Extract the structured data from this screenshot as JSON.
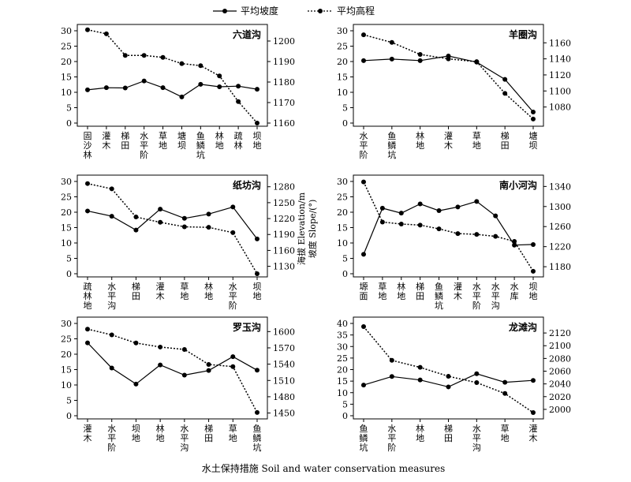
{
  "legend": {
    "slope_label": "平均坡度",
    "elev_label": "平均高程"
  },
  "y_left_label": "坡度 Slope/(°)",
  "y_right_label": "海拔 Elevation/m",
  "x_axis_title": "水土保持措施 Soil and water conservation measures",
  "chart_data": [
    {
      "type": "line",
      "title": "六道沟",
      "categories": [
        "固沙林",
        "灌木",
        "梯田",
        "水平阶",
        "草地",
        "塘坝",
        "鱼鳞坑",
        "林地",
        "疏林",
        "坝地"
      ],
      "series": [
        {
          "name": "平均坡度",
          "axis": "left",
          "values": [
            10.8,
            11.5,
            11.4,
            13.7,
            11.5,
            8.5,
            12.6,
            11.8,
            12.0,
            11.0
          ]
        },
        {
          "name": "平均高程",
          "axis": "right",
          "values": [
            1205.5,
            1203.5,
            1193,
            1193,
            1192,
            1189,
            1188,
            1183,
            1170.5,
            1160
          ]
        }
      ],
      "ylim_left": [
        0,
        30
      ],
      "yticks_left": [
        0,
        5,
        10,
        15,
        20,
        25,
        30
      ],
      "ylim_right": [
        1160,
        1205
      ],
      "yticks_right": [
        1160,
        1170,
        1180,
        1190,
        1200
      ]
    },
    {
      "type": "line",
      "title": "羊圈沟",
      "categories": [
        "水平阶",
        "鱼鳞坑",
        "林地",
        "灌木",
        "草地",
        "梯田",
        "塘坝"
      ],
      "series": [
        {
          "name": "平均坡度",
          "axis": "left",
          "values": [
            20.3,
            20.8,
            20.3,
            21.8,
            19.8,
            14.2,
            3.6
          ]
        },
        {
          "name": "平均高程",
          "axis": "right",
          "values": [
            1170,
            1160.5,
            1145.5,
            1140,
            1136.5,
            1097,
            1065
          ]
        }
      ],
      "ylim_left": [
        0,
        30
      ],
      "yticks_left": [
        0,
        5,
        10,
        15,
        20,
        25,
        30
      ],
      "ylim_right": [
        1060,
        1175
      ],
      "yticks_right": [
        1080,
        1100,
        1120,
        1140,
        1160
      ]
    },
    {
      "type": "line",
      "title": "纸坊沟",
      "categories": [
        "疏林地",
        "水平沟",
        "梯田",
        "灌木",
        "草地",
        "林地",
        "水平阶",
        "坝地"
      ],
      "series": [
        {
          "name": "平均坡度",
          "axis": "left",
          "values": [
            20.4,
            18.7,
            14.2,
            21.0,
            18.0,
            19.4,
            21.7,
            11.3
          ]
        },
        {
          "name": "平均高程",
          "axis": "right",
          "values": [
            1286,
            1276,
            1223,
            1213,
            1204.5,
            1203.5,
            1193.5,
            1116
          ]
        }
      ],
      "ylim_left": [
        0,
        30
      ],
      "yticks_left": [
        0,
        5,
        10,
        15,
        20,
        25,
        30
      ],
      "ylim_right": [
        1116,
        1290
      ],
      "yticks_right": [
        1130,
        1160,
        1190,
        1220,
        1250,
        1280
      ]
    },
    {
      "type": "line",
      "title": "南小河沟",
      "categories": [
        "塬面",
        "草地",
        "林地",
        "梯田",
        "鱼鳞坑",
        "灌木",
        "水平阶",
        "水平沟",
        "水库",
        "坝地"
      ],
      "series": [
        {
          "name": "平均坡度",
          "axis": "left",
          "values": [
            6.3,
            21.3,
            19.7,
            22.7,
            20.5,
            21.7,
            23.5,
            18.8,
            9.3,
            9.5
          ]
        },
        {
          "name": "平均高程",
          "axis": "right",
          "values": [
            1349,
            1269,
            1265,
            1263,
            1255.5,
            1246,
            1244.5,
            1240.5,
            1230.5,
            1171
          ]
        }
      ],
      "ylim_left": [
        0,
        30
      ],
      "yticks_left": [
        0,
        5,
        10,
        15,
        20,
        25,
        30
      ],
      "ylim_right": [
        1166,
        1350
      ],
      "yticks_right": [
        1180,
        1220,
        1260,
        1300,
        1340
      ]
    },
    {
      "type": "line",
      "title": "罗玉沟",
      "categories": [
        "灌木",
        "水平阶",
        "坝地",
        "林地",
        "水平沟",
        "梯田",
        "草地",
        "鱼鳞坑"
      ],
      "series": [
        {
          "name": "平均坡度",
          "axis": "left",
          "values": [
            23.7,
            15.5,
            10.3,
            16.5,
            13.2,
            14.7,
            19.2,
            14.8
          ]
        },
        {
          "name": "平均高程",
          "axis": "right",
          "values": [
            1604.5,
            1594,
            1579,
            1571.5,
            1567,
            1539.5,
            1535.5,
            1451
          ]
        }
      ],
      "ylim_left": [
        0,
        30
      ],
      "yticks_left": [
        0,
        5,
        10,
        15,
        20,
        25,
        30
      ],
      "ylim_right": [
        1445,
        1615
      ],
      "yticks_right": [
        1450,
        1480,
        1510,
        1540,
        1570,
        1600
      ]
    },
    {
      "type": "line",
      "title": "龙滩沟",
      "categories": [
        "鱼鳞坑",
        "水平阶",
        "林地",
        "梯田",
        "水平沟",
        "草地",
        "灌木"
      ],
      "series": [
        {
          "name": "平均坡度",
          "axis": "left",
          "values": [
            13.3,
            17.0,
            15.5,
            12.5,
            18.2,
            14.5,
            15.3
          ]
        },
        {
          "name": "平均高程",
          "axis": "right",
          "values": [
            2130,
            2077,
            2066,
            2052,
            2042,
            2025,
            1995
          ]
        }
      ],
      "ylim_left": [
        0,
        40
      ],
      "yticks_left": [
        0,
        5,
        10,
        15,
        20,
        25,
        30,
        35,
        40
      ],
      "ylim_right": [
        1990,
        2135
      ],
      "yticks_right": [
        2000,
        2020,
        2040,
        2060,
        2080,
        2100,
        2120
      ]
    }
  ]
}
